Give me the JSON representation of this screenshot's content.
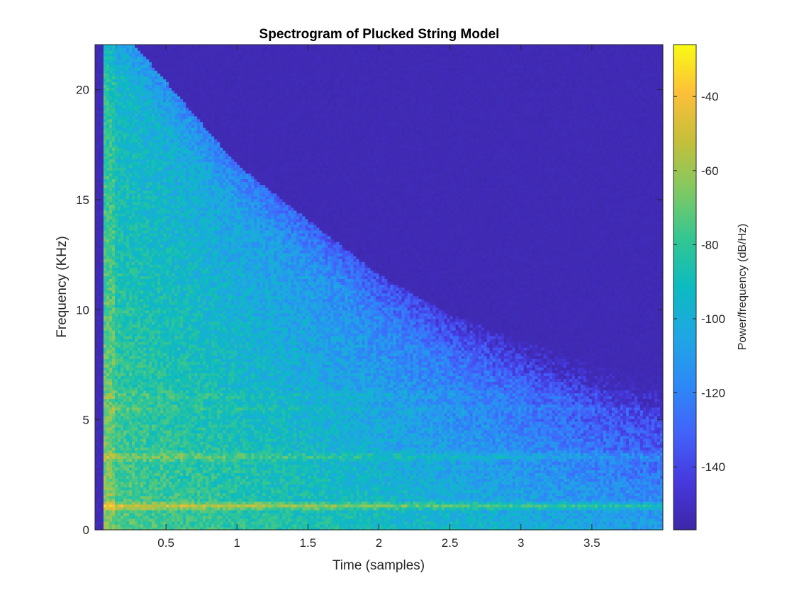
{
  "chart_data": {
    "type": "heatmap",
    "title": "Spectrogram of Plucked String Model",
    "xlabel": "Time (samples)",
    "ylabel": "Frequency (KHz)",
    "xlim": [
      0,
      4
    ],
    "ylim": [
      0,
      22.05
    ],
    "x_ticks": [
      0.5,
      1,
      1.5,
      2,
      2.5,
      3,
      3.5
    ],
    "x_tick_labels": [
      "0.5",
      "1",
      "1.5",
      "2",
      "2.5",
      "3",
      "3.5"
    ],
    "y_ticks": [
      0,
      5,
      10,
      15,
      20
    ],
    "y_tick_labels": [
      "0",
      "5",
      "10",
      "15",
      "20"
    ],
    "colorbar": {
      "label": "Power/frequency (dB/Hz)",
      "range": [
        -157,
        -26
      ],
      "ticks": [
        -40,
        -60,
        -80,
        -100,
        -120,
        -140
      ],
      "tick_labels": [
        "-40",
        "-60",
        "-80",
        "-100",
        "-120",
        "-140"
      ],
      "colormap": "parula"
    },
    "features": {
      "harmonic_lines_khz": [
        1.1,
        3.35,
        5.5,
        6.1
      ],
      "onset_time": 0.06,
      "noise_floor_db": -155,
      "decay_boundary": [
        [
          0.2,
          22.05
        ],
        [
          1.0,
          16
        ],
        [
          1.5,
          13.5
        ],
        [
          2.0,
          11
        ],
        [
          2.5,
          9.2
        ],
        [
          3.0,
          8.0
        ],
        [
          3.5,
          7.0
        ],
        [
          4.0,
          6.3
        ]
      ]
    }
  },
  "colors": {
    "background": "#ffffff",
    "axis": "#262626",
    "floor": "#3e26a8"
  }
}
